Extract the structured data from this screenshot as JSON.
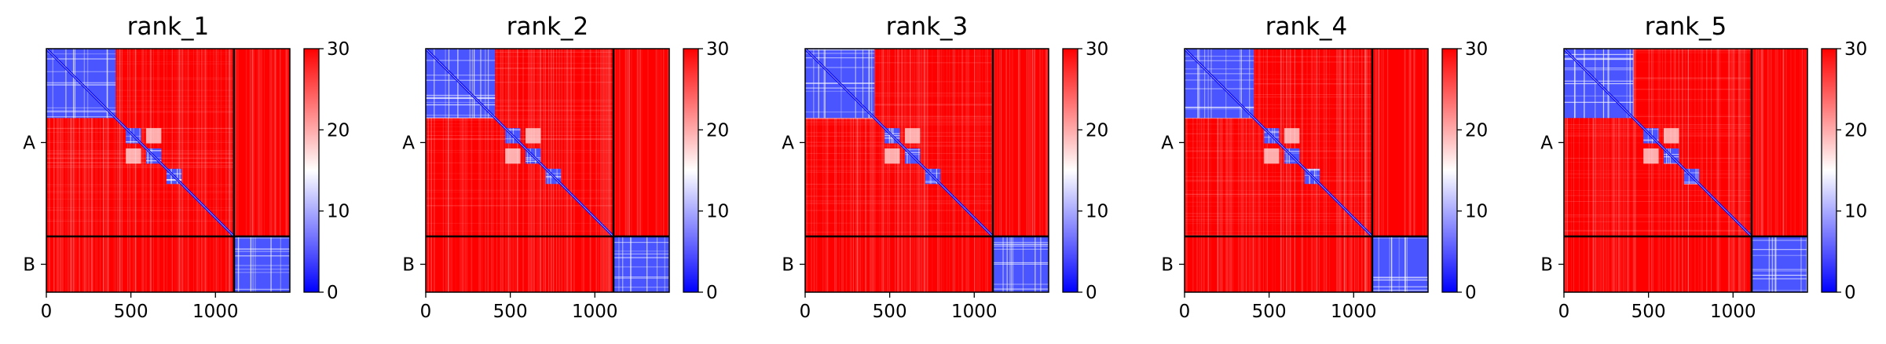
{
  "chart_data": {
    "type": "heatmap",
    "panels": [
      {
        "title": "rank_1"
      },
      {
        "title": "rank_2"
      },
      {
        "title": "rank_3"
      },
      {
        "title": "rank_4"
      },
      {
        "title": "rank_5"
      }
    ],
    "matrix_size": 1440,
    "chain_boundary": 1110,
    "chains": [
      {
        "label": "A",
        "start": 0,
        "end": 1110
      },
      {
        "label": "B",
        "start": 1110,
        "end": 1440
      }
    ],
    "xticks": [
      0,
      500,
      1000
    ],
    "xtick_labels": [
      "0",
      "500",
      "1000"
    ],
    "colorbar": {
      "min": 0,
      "max": 30,
      "ticks": [
        0,
        10,
        20,
        30
      ],
      "tick_labels": [
        "0",
        "10",
        "20",
        "30"
      ],
      "colormap": "bwr",
      "colors": {
        "low": "#0000ff",
        "mid": "#ffffff",
        "high": "#ff0000"
      }
    },
    "low_error_blocks": [
      {
        "start": 0,
        "end": 410
      },
      {
        "start": 470,
        "end": 560
      },
      {
        "start": 590,
        "end": 680
      },
      {
        "start": 710,
        "end": 800
      },
      {
        "start": 1110,
        "end": 1440
      }
    ],
    "grid": false
  }
}
